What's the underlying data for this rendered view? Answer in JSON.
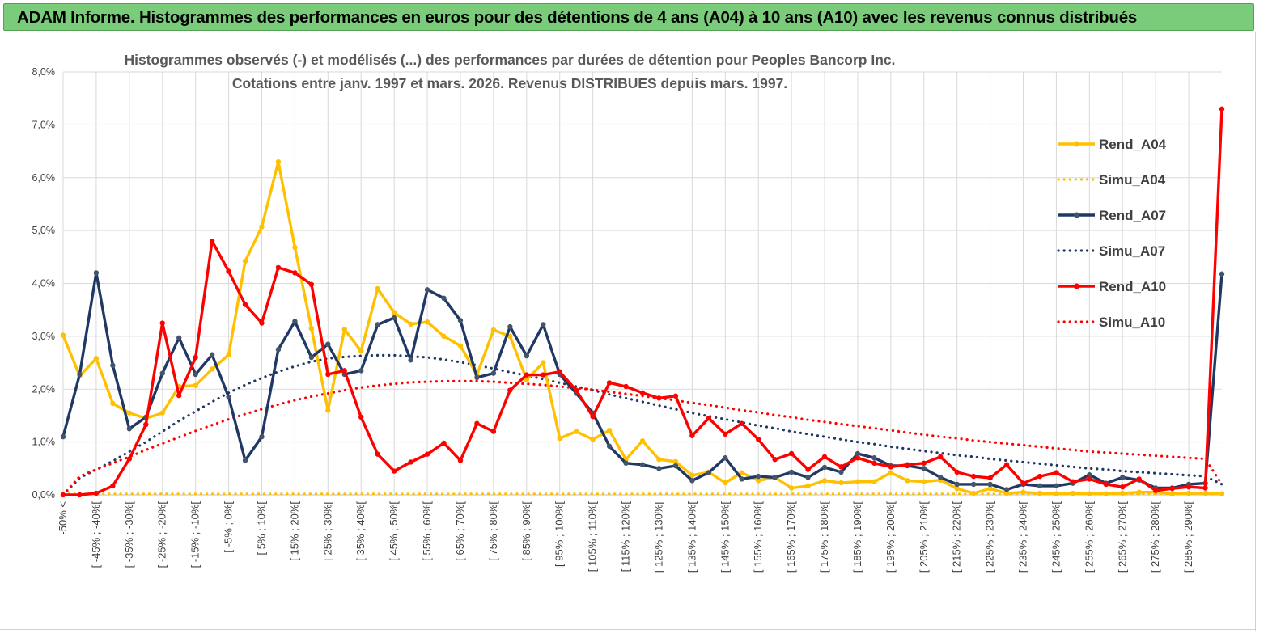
{
  "banner": {
    "title": "ADAM Informe. Histogrammes des performances en euros pour des détentions de 4 ans (A04) à 10 ans (A10) avec les revenus connus distribués"
  },
  "colors": {
    "banner_bg": "#7acb7a",
    "A04": "#ffc000",
    "A07": "#1f3864",
    "A10": "#ff0000",
    "grid": "#d9d9d9"
  },
  "chart_data": {
    "type": "line",
    "title_lines": [
      "Histogrammes observés (-) et modélisés (...) des performances par durées de détention pour Peoples Bancorp Inc.",
      "Cotations entre janv. 1997 et mars. 2026. Revenus DISTRIBUES depuis mars. 1997."
    ],
    "ylim": [
      0,
      8
    ],
    "y_ticks": [
      "0,0%",
      "1,0%",
      "2,0%",
      "3,0%",
      "4,0%",
      "5,0%",
      "6,0%",
      "7,0%",
      "8,0%"
    ],
    "x_labels": [
      "-50% <",
      "[ -45% ; -40%[",
      "[ -35% ; -30%[",
      "[ -25% ; -20%[",
      "[ -15% ; -10%[",
      "[ -5% ; 0%[",
      "[ 5% ; 10%[",
      "[ 15% ; 20%[",
      "[ 25% ; 30%[",
      "[ 35% ; 40%[",
      "[ 45% ; 50%[",
      "[ 55% ; 60%[",
      "[ 65% ; 70%[",
      "[ 75% ; 80%[",
      "[ 85% ; 90%[",
      "[ 95% ; 100%[",
      "[ 105% ; 110%[",
      "[ 115% ; 120%[",
      "[ 125% ; 130%[",
      "[ 135% ; 140%[",
      "[ 145% ; 150%[",
      "[ 155% ; 160%[",
      "[ 165% ; 170%[",
      "[ 175% ; 180%[",
      "[ 185% ; 190%[",
      "[ 195% ; 200%[",
      "[ 205% ; 210%[",
      "[ 215% ; 220%[",
      "[ 225% ; 230%[",
      "[ 235% ; 240%[",
      "[ 245% ; 250%[",
      "[ 255% ; 260%[",
      "[ 265% ; 270%[",
      "[ 275% ; 280%[",
      "[ 285% ; 290%["
    ],
    "n_points": 71,
    "series": [
      {
        "name": "Rend_A04",
        "style": "solid",
        "color": "#ffc000",
        "values": [
          3.02,
          2.25,
          2.58,
          1.73,
          1.55,
          1.45,
          1.55,
          2.05,
          2.07,
          2.38,
          2.65,
          4.42,
          5.07,
          6.3,
          4.68,
          3.15,
          1.6,
          3.13,
          2.72,
          3.9,
          3.45,
          3.23,
          3.27,
          3.0,
          2.82,
          2.27,
          3.12,
          3.0,
          2.18,
          2.5,
          1.07,
          1.2,
          1.05,
          1.22,
          0.67,
          1.02,
          0.67,
          0.63,
          0.37,
          0.43,
          0.23,
          0.42,
          0.27,
          0.33,
          0.13,
          0.17,
          0.27,
          0.23,
          0.25,
          0.25,
          0.42,
          0.27,
          0.25,
          0.28,
          0.12,
          0.03,
          0.12,
          0.03,
          0.05,
          0.03,
          0.02,
          0.03,
          0.02,
          0.02,
          0.03,
          0.05,
          0.05,
          0.02,
          0.03,
          0.03,
          0.02
        ]
      },
      {
        "name": "Simu_A04",
        "style": "dotted",
        "color": "#ffc000",
        "values": [
          0.02,
          0.02,
          0.02,
          0.02,
          0.02,
          0.02,
          0.02,
          0.02,
          0.02,
          0.02,
          0.02,
          0.02,
          0.02,
          0.02,
          0.02,
          0.02,
          0.02,
          0.02,
          0.02,
          0.02,
          0.02,
          0.02,
          0.02,
          0.02,
          0.02,
          0.02,
          0.02,
          0.02,
          0.02,
          0.02,
          0.02,
          0.02,
          0.02,
          0.02,
          0.02,
          0.02,
          0.02,
          0.02,
          0.02,
          0.02,
          0.02,
          0.02,
          0.02,
          0.02,
          0.02,
          0.02,
          0.02,
          0.02,
          0.02,
          0.02,
          0.02,
          0.02,
          0.02,
          0.02,
          0.02,
          0.02,
          0.02,
          0.02,
          0.02,
          0.02,
          0.02,
          0.02,
          0.02,
          0.02,
          0.02,
          0.02,
          0.02,
          0.02,
          0.02,
          0.02,
          0.02
        ]
      },
      {
        "name": "Rend_A07",
        "style": "solid",
        "color": "#1f3864",
        "values": [
          1.1,
          2.28,
          4.2,
          2.45,
          1.25,
          1.47,
          2.3,
          2.97,
          2.28,
          2.65,
          1.85,
          0.65,
          1.1,
          2.75,
          3.28,
          2.6,
          2.85,
          2.28,
          2.35,
          3.22,
          3.35,
          2.55,
          3.88,
          3.72,
          3.3,
          2.22,
          2.3,
          3.18,
          2.63,
          3.22,
          2.28,
          1.92,
          1.55,
          0.92,
          0.6,
          0.57,
          0.5,
          0.55,
          0.27,
          0.42,
          0.7,
          0.3,
          0.35,
          0.33,
          0.43,
          0.33,
          0.52,
          0.43,
          0.78,
          0.7,
          0.55,
          0.55,
          0.5,
          0.33,
          0.2,
          0.2,
          0.2,
          0.1,
          0.2,
          0.17,
          0.17,
          0.22,
          0.38,
          0.22,
          0.33,
          0.28,
          0.13,
          0.13,
          0.2,
          0.22,
          4.18
        ]
      },
      {
        "name": "Simu_A07",
        "style": "dotted",
        "color": "#1f3864",
        "values": [
          0.0,
          0.32,
          0.48,
          0.64,
          0.82,
          1.0,
          1.2,
          1.4,
          1.58,
          1.76,
          1.93,
          2.08,
          2.21,
          2.33,
          2.43,
          2.52,
          2.58,
          2.61,
          2.63,
          2.64,
          2.64,
          2.62,
          2.6,
          2.56,
          2.51,
          2.45,
          2.39,
          2.32,
          2.26,
          2.19,
          2.12,
          2.05,
          1.98,
          1.9,
          1.83,
          1.76,
          1.69,
          1.62,
          1.55,
          1.49,
          1.43,
          1.37,
          1.31,
          1.26,
          1.2,
          1.15,
          1.1,
          1.05,
          1.0,
          0.96,
          0.91,
          0.87,
          0.83,
          0.79,
          0.75,
          0.72,
          0.68,
          0.65,
          0.62,
          0.59,
          0.56,
          0.53,
          0.5,
          0.48,
          0.45,
          0.43,
          0.41,
          0.39,
          0.37,
          0.35,
          0.2
        ]
      },
      {
        "name": "Rend_A10",
        "style": "solid",
        "color": "#ff0000",
        "values": [
          0.0,
          0.0,
          0.03,
          0.17,
          0.68,
          1.33,
          3.25,
          1.88,
          2.6,
          4.8,
          4.23,
          3.6,
          3.25,
          4.3,
          4.2,
          3.98,
          2.28,
          2.35,
          1.47,
          0.77,
          0.45,
          0.62,
          0.77,
          0.98,
          0.65,
          1.35,
          1.2,
          1.98,
          2.27,
          2.27,
          2.33,
          1.98,
          1.48,
          2.12,
          2.05,
          1.93,
          1.83,
          1.87,
          1.12,
          1.45,
          1.15,
          1.35,
          1.05,
          0.67,
          0.78,
          0.48,
          0.72,
          0.53,
          0.7,
          0.6,
          0.53,
          0.57,
          0.6,
          0.72,
          0.43,
          0.35,
          0.32,
          0.57,
          0.22,
          0.35,
          0.42,
          0.25,
          0.3,
          0.2,
          0.15,
          0.3,
          0.08,
          0.12,
          0.15,
          0.13,
          7.3
        ]
      },
      {
        "name": "Simu_A10",
        "style": "dotted",
        "color": "#ff0000",
        "values": [
          0.0,
          0.35,
          0.48,
          0.6,
          0.72,
          0.85,
          0.97,
          1.09,
          1.21,
          1.32,
          1.43,
          1.53,
          1.62,
          1.71,
          1.79,
          1.86,
          1.92,
          1.98,
          2.03,
          2.07,
          2.1,
          2.13,
          2.14,
          2.15,
          2.15,
          2.15,
          2.14,
          2.12,
          2.1,
          2.08,
          2.05,
          2.02,
          1.99,
          1.95,
          1.91,
          1.87,
          1.83,
          1.79,
          1.74,
          1.7,
          1.65,
          1.6,
          1.56,
          1.51,
          1.47,
          1.42,
          1.38,
          1.34,
          1.3,
          1.26,
          1.22,
          1.18,
          1.14,
          1.1,
          1.07,
          1.03,
          1.0,
          0.97,
          0.94,
          0.91,
          0.88,
          0.85,
          0.82,
          0.8,
          0.78,
          0.76,
          0.74,
          0.72,
          0.7,
          0.68,
          0.2
        ]
      }
    ]
  }
}
